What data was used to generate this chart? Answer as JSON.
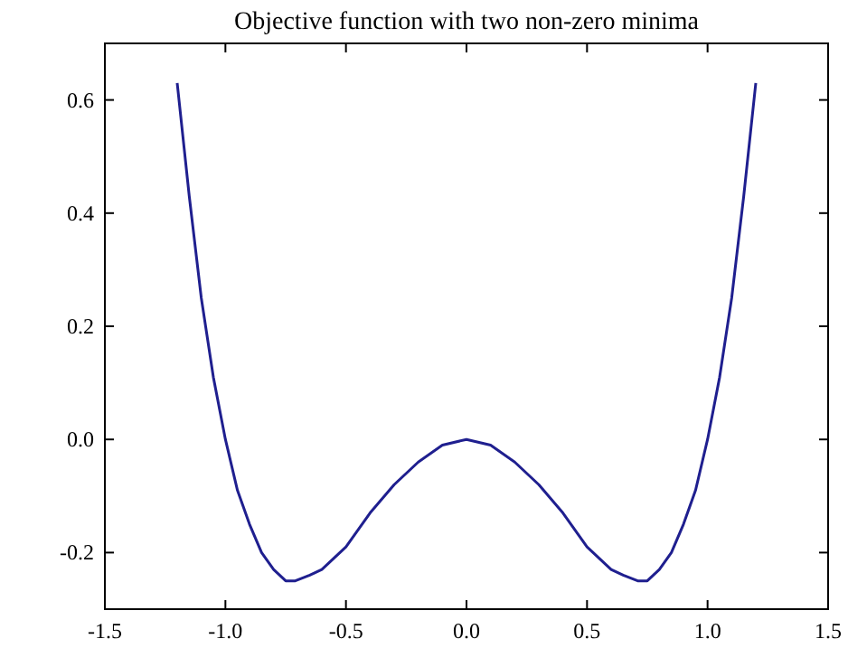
{
  "chart_data": {
    "type": "line",
    "title": "Objective function with two non-zero minima",
    "x": [
      -1.2,
      -1.15,
      -1.1,
      -1.05,
      -1.0,
      -0.95,
      -0.9,
      -0.85,
      -0.8,
      -0.75,
      -0.71,
      -0.65,
      -0.6,
      -0.5,
      -0.4,
      -0.3,
      -0.2,
      -0.1,
      0,
      0.1,
      0.2,
      0.3,
      0.4,
      0.5,
      0.6,
      0.65,
      0.71,
      0.75,
      0.8,
      0.85,
      0.9,
      0.95,
      1.0,
      1.05,
      1.1,
      1.15,
      1.2
    ],
    "series": [
      {
        "color": "#1f1f8f",
        "values": [
          0.63,
          0.43,
          0.25,
          0.11,
          0.0,
          -0.09,
          -0.15,
          -0.2,
          -0.23,
          -0.25,
          -0.25,
          -0.24,
          -0.23,
          -0.19,
          -0.13,
          -0.08,
          -0.04,
          -0.01,
          0.0,
          -0.01,
          -0.04,
          -0.08,
          -0.13,
          -0.19,
          -0.23,
          -0.24,
          -0.25,
          -0.25,
          -0.23,
          -0.2,
          -0.15,
          -0.09,
          0.0,
          0.11,
          0.25,
          0.43,
          0.63
        ]
      }
    ],
    "xlim": [
      -1.5,
      1.5
    ],
    "ylim": [
      -0.3,
      0.7
    ],
    "xticks": [
      {
        "value": -1.5,
        "label": "-1.5"
      },
      {
        "value": -1.0,
        "label": "-1.0"
      },
      {
        "value": -0.5,
        "label": "-0.5"
      },
      {
        "value": 0,
        "label": "0.0"
      },
      {
        "value": 0.5,
        "label": "0.5"
      },
      {
        "value": 1.0,
        "label": "1.0"
      },
      {
        "value": 1.5,
        "label": "1.5"
      }
    ],
    "yticks": [
      {
        "value": -0.2,
        "label": "-0.2"
      },
      {
        "value": 0,
        "label": "0.0"
      },
      {
        "value": 0.2,
        "label": "0.2"
      },
      {
        "value": 0.4,
        "label": "0.4"
      },
      {
        "value": 0.6,
        "label": "0.6"
      }
    ],
    "line_style": "solid",
    "marker": "none",
    "grid": false
  }
}
